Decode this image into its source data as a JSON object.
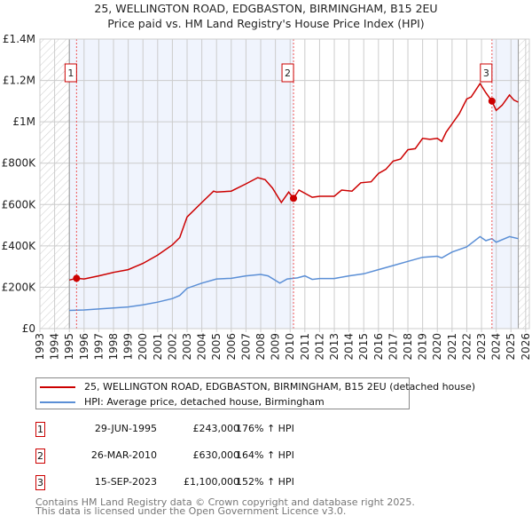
{
  "title": "25, WELLINGTON ROAD, EDGBASTON, BIRMINGHAM, B15 2EU",
  "subtitle": "Price paid vs. HM Land Registry's House Price Index (HPI)",
  "legend": [
    {
      "label": "25, WELLINGTON ROAD, EDGBASTON, BIRMINGHAM, B15 2EU (detached house)",
      "color": "#cc0000"
    },
    {
      "label": "HPI: Average price, detached house, Birmingham",
      "color": "#5b8fd6"
    }
  ],
  "sales": [
    {
      "num": "1",
      "date": "29-JUN-1995",
      "price": "£243,000",
      "hpi": "176% ↑ HPI",
      "x": 1995.49,
      "y": 243000
    },
    {
      "num": "2",
      "date": "26-MAR-2010",
      "price": "£630,000",
      "hpi": "164% ↑ HPI",
      "x": 2010.23,
      "y": 630000
    },
    {
      "num": "3",
      "date": "15-SEP-2023",
      "price": "£1,100,000",
      "hpi": "152% ↑ HPI",
      "x": 2023.71,
      "y": 1100000
    }
  ],
  "footer": [
    "Contains HM Land Registry data © Crown copyright and database right 2025.",
    "This data is licensed under the Open Government Licence v3.0."
  ],
  "chart_data": {
    "type": "line",
    "xlim": [
      1993,
      2026.25
    ],
    "ylim": [
      0,
      1400000
    ],
    "yticks": [
      0,
      200000,
      400000,
      600000,
      800000,
      1000000,
      1200000,
      1400000
    ],
    "ytick_labels": [
      "£0",
      "£200K",
      "£400K",
      "£600K",
      "£800K",
      "£1M",
      "£1.2M",
      "£1.4M"
    ],
    "xticks": [
      "1993",
      "1994",
      "1995",
      "1996",
      "1997",
      "1998",
      "1999",
      "2000",
      "2001",
      "2002",
      "2003",
      "2004",
      "2005",
      "2006",
      "2007",
      "2008",
      "2009",
      "2010",
      "2011",
      "2012",
      "2013",
      "2014",
      "2015",
      "2016",
      "2017",
      "2018",
      "2019",
      "2020",
      "2021",
      "2022",
      "2023",
      "2024",
      "2025",
      "2026"
    ],
    "grid": true,
    "series": [
      {
        "name": "25, WELLINGTON ROAD, EDGBASTON, BIRMINGHAM, B15 2EU (detached house)",
        "color": "#cc0000",
        "points": [
          [
            1995.0,
            235
          ],
          [
            1995.5,
            243
          ],
          [
            1996,
            240
          ],
          [
            1997,
            255
          ],
          [
            1998,
            272
          ],
          [
            1999,
            285
          ],
          [
            1999.5,
            300
          ],
          [
            2000,
            315
          ],
          [
            2001,
            355
          ],
          [
            2002,
            405
          ],
          [
            2002.5,
            440
          ],
          [
            2003,
            540
          ],
          [
            2004,
            610
          ],
          [
            2004.8,
            665
          ],
          [
            2005,
            660
          ],
          [
            2006,
            665
          ],
          [
            2007,
            700
          ],
          [
            2007.8,
            730
          ],
          [
            2008.3,
            720
          ],
          [
            2008.8,
            680
          ],
          [
            2009.4,
            610
          ],
          [
            2009.9,
            660
          ],
          [
            2010.23,
            630
          ],
          [
            2010.6,
            670
          ],
          [
            2011.5,
            635
          ],
          [
            2012,
            640
          ],
          [
            2013,
            640
          ],
          [
            2013.5,
            670
          ],
          [
            2014.2,
            665
          ],
          [
            2014.8,
            705
          ],
          [
            2015.5,
            710
          ],
          [
            2016,
            750
          ],
          [
            2016.5,
            770
          ],
          [
            2017,
            810
          ],
          [
            2017.5,
            820
          ],
          [
            2018,
            865
          ],
          [
            2018.5,
            870
          ],
          [
            2019,
            920
          ],
          [
            2019.5,
            915
          ],
          [
            2020,
            920
          ],
          [
            2020.3,
            905
          ],
          [
            2020.6,
            950
          ],
          [
            2021,
            990
          ],
          [
            2021.5,
            1040
          ],
          [
            2022,
            1110
          ],
          [
            2022.3,
            1120
          ],
          [
            2022.9,
            1185
          ],
          [
            2023.3,
            1140
          ],
          [
            2023.71,
            1100
          ],
          [
            2024,
            1055
          ],
          [
            2024.4,
            1080
          ],
          [
            2024.9,
            1130
          ],
          [
            2025.2,
            1105
          ],
          [
            2025.5,
            1095
          ]
        ]
      },
      {
        "name": "HPI: Average price, detached house, Birmingham",
        "color": "#5b8fd6",
        "points": [
          [
            1995,
            88
          ],
          [
            1996,
            90
          ],
          [
            1997,
            95
          ],
          [
            1998,
            100
          ],
          [
            1999,
            105
          ],
          [
            2000,
            115
          ],
          [
            2001,
            128
          ],
          [
            2002,
            145
          ],
          [
            2002.5,
            160
          ],
          [
            2003,
            195
          ],
          [
            2004,
            220
          ],
          [
            2005,
            240
          ],
          [
            2006,
            243
          ],
          [
            2007,
            255
          ],
          [
            2008,
            262
          ],
          [
            2008.5,
            255
          ],
          [
            2009.3,
            220
          ],
          [
            2009.8,
            240
          ],
          [
            2010.5,
            245
          ],
          [
            2011,
            255
          ],
          [
            2011.5,
            238
          ],
          [
            2012,
            242
          ],
          [
            2013,
            242
          ],
          [
            2014,
            255
          ],
          [
            2015,
            265
          ],
          [
            2016,
            285
          ],
          [
            2017,
            305
          ],
          [
            2018,
            325
          ],
          [
            2019,
            345
          ],
          [
            2020,
            350
          ],
          [
            2020.3,
            342
          ],
          [
            2021,
            370
          ],
          [
            2022,
            395
          ],
          [
            2022.9,
            445
          ],
          [
            2023.3,
            425
          ],
          [
            2023.7,
            435
          ],
          [
            2024,
            418
          ],
          [
            2024.9,
            445
          ],
          [
            2025.5,
            435
          ]
        ]
      }
    ],
    "y_units": "thousands GBP"
  }
}
